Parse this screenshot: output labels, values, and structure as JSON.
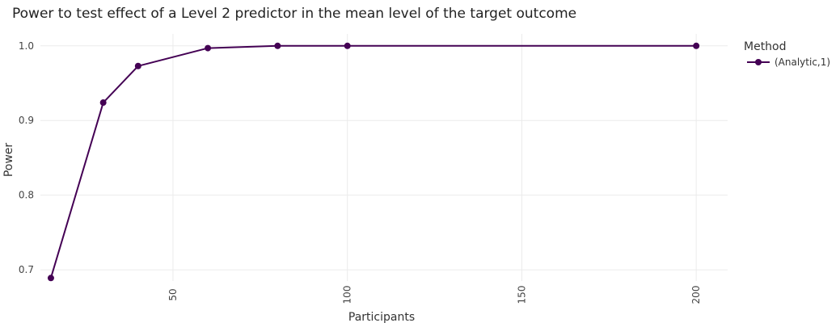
{
  "chart_data": {
    "type": "line",
    "title": "Power to test effect of a Level 2 predictor in the mean level of the target outcome",
    "xlabel": "Participants",
    "ylabel": "Power",
    "xlim": [
      12,
      209
    ],
    "ylim": [
      0.685,
      1.016
    ],
    "x_ticks": [
      50,
      100,
      150,
      200
    ],
    "y_ticks": [
      0.7,
      0.8,
      0.9,
      1.0
    ],
    "x_tick_labels": [
      "50",
      "100",
      "150",
      "200"
    ],
    "y_tick_labels": [
      "0.7",
      "0.8",
      "0.9",
      "1.0"
    ],
    "grid": true,
    "legend": {
      "title": "Method",
      "placement": "right"
    },
    "series": [
      {
        "name": "(Analytic,1)",
        "color": "#440154",
        "x": [
          15,
          30,
          40,
          60,
          80,
          100,
          200
        ],
        "y": [
          0.689,
          0.924,
          0.973,
          0.997,
          1.0,
          1.0,
          1.0
        ]
      }
    ]
  }
}
